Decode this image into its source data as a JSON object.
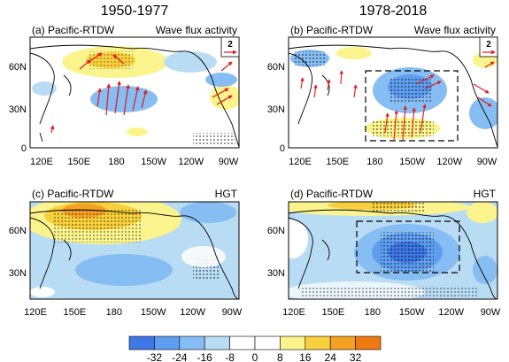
{
  "column_titles": [
    "1950-1977",
    "1978-2018"
  ],
  "panels": [
    {
      "label": "(a) Pacific-RTDW",
      "variable": "Wave flux activity",
      "ref_vector": "2",
      "lon_ticks": [
        "120E",
        "150E",
        "180",
        "150W",
        "120W",
        "90W"
      ],
      "lat_ticks": [
        "60N",
        "30N",
        "0"
      ]
    },
    {
      "label": "(b) Pacific-RTDW",
      "variable": "Wave flux activity",
      "ref_vector": "2",
      "lon_ticks": [
        "120E",
        "150E",
        "180",
        "150W",
        "120W",
        "90W"
      ],
      "lat_ticks": [
        "60N",
        "30N",
        "0"
      ]
    },
    {
      "label": "(c) Pacific-RTDW",
      "variable": "HGT",
      "ref_vector": "",
      "lon_ticks": [
        "120E",
        "150E",
        "180",
        "150W",
        "120W",
        "90W"
      ],
      "lat_ticks": [
        "60N",
        "30N"
      ]
    },
    {
      "label": "(d) Pacific-RTDW",
      "variable": "HGT",
      "ref_vector": "",
      "lon_ticks": [
        "120E",
        "150E",
        "180",
        "150W",
        "120W",
        "90W"
      ],
      "lat_ticks": [
        "60N",
        "30N"
      ]
    }
  ],
  "colorbar": {
    "labels": [
      "-32",
      "-24",
      "-16",
      "-8",
      "0",
      "8",
      "16",
      "24",
      "32"
    ],
    "colors": [
      "#3f77e6",
      "#5e9ef0",
      "#86bdf2",
      "#b9dcf5",
      "#ffffff",
      "#ffffff",
      "#fbf48c",
      "#f8cf3c",
      "#f4a020",
      "#ef7a12"
    ]
  },
  "chart_data": {
    "type": "heatmap",
    "panels": [
      {
        "id": "a",
        "field": "Wave flux activity",
        "period": "1950-1977",
        "lon_range": [
          "110E",
          "90W"
        ],
        "lat_range": [
          0,
          80
        ]
      },
      {
        "id": "b",
        "field": "Wave flux activity",
        "period": "1978-2018",
        "lon_range": [
          "110E",
          "90W"
        ],
        "lat_range": [
          0,
          80
        ]
      },
      {
        "id": "c",
        "field": "HGT",
        "period": "1950-1977",
        "lon_range": [
          "110E",
          "90W"
        ],
        "lat_range": [
          10,
          80
        ]
      },
      {
        "id": "d",
        "field": "HGT",
        "period": "1978-2018",
        "lon_range": [
          "110E",
          "90W"
        ],
        "lat_range": [
          10,
          80
        ]
      }
    ],
    "colorbar_levels": [
      -32,
      -24,
      -16,
      -8,
      0,
      8,
      16,
      24,
      32
    ]
  }
}
